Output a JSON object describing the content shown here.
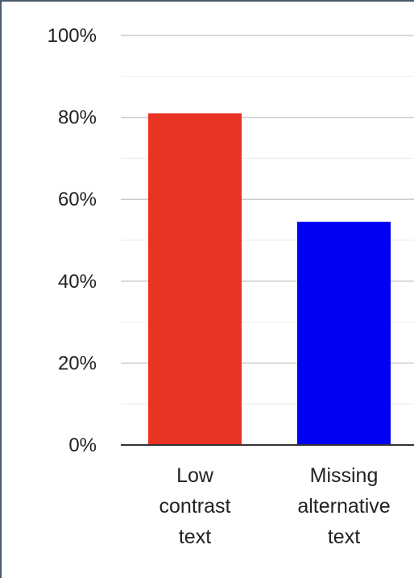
{
  "chart_data": {
    "type": "bar",
    "categories": [
      [
        "Low",
        "contrast",
        "text"
      ],
      [
        "Missing",
        "alternative",
        "text"
      ]
    ],
    "values": [
      81,
      54.5
    ],
    "colors": [
      "#e93323",
      "#0000f5"
    ],
    "ylim": [
      0,
      100
    ],
    "yticks": [
      {
        "value": 0,
        "label": "0%"
      },
      {
        "value": 20,
        "label": "20%"
      },
      {
        "value": 40,
        "label": "40%"
      },
      {
        "value": 60,
        "label": "60%"
      },
      {
        "value": 80,
        "label": "80%"
      },
      {
        "value": 100,
        "label": "100%"
      }
    ],
    "minor_gridlines": [
      10,
      30,
      50,
      70,
      90
    ],
    "grid": true,
    "legend": "none"
  }
}
